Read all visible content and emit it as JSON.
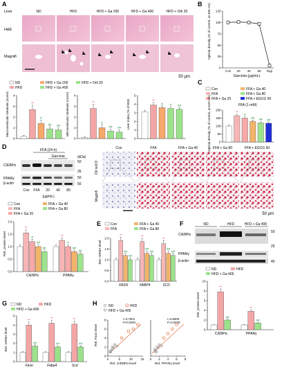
{
  "panels": {
    "A": {
      "letter": "A",
      "row_labels": {
        "section": "Liver",
        "he": "H&E",
        "magnifi": "Magnifi"
      },
      "groups": [
        "ND",
        "HFD",
        "HFD + Ga 200",
        "HFD + Ga 400",
        "HFD + Orli 20"
      ],
      "scale_bar": "50 μm",
      "legend": [
        "ND",
        "HFD",
        "HFD + Ga 200",
        "HFD + Ga 400",
        "HFD + Orli 20"
      ],
      "charts": [
        {
          "ylabel": "Macrovesicular steatosis (score)",
          "ymax": 4,
          "ticks": [
            "0",
            "1",
            "2",
            "3",
            "4"
          ],
          "values": [
            0.2,
            2.7,
            1.4,
            0.9,
            0.8
          ],
          "errors": [
            0.1,
            0.4,
            0.3,
            0.2,
            0.2
          ],
          "marks": [
            "",
            "**",
            "#",
            "##",
            "##"
          ]
        },
        {
          "ylabel": "Microvesicular steatosis (score)",
          "ymax": 4,
          "ticks": [
            "0",
            "1",
            "2",
            "3",
            "4"
          ],
          "values": [
            0.1,
            2.8,
            1.0,
            0.7,
            0.6
          ],
          "errors": [
            0.1,
            0.4,
            0.3,
            0.2,
            0.2
          ],
          "marks": [
            "",
            "**",
            "#",
            "##",
            "##"
          ]
        },
        {
          "ylabel": "Liver index (% of BW)",
          "ymax": 5,
          "ticks": [
            "0",
            "1",
            "2",
            "3",
            "4",
            "5"
          ],
          "values": [
            3.1,
            3.9,
            3.6,
            3.5,
            3.4
          ],
          "errors": [
            0.2,
            0.3,
            0.2,
            0.2,
            0.2
          ],
          "marks": [
            "",
            "**",
            "#",
            "#",
            "##"
          ]
        }
      ]
    },
    "B": {
      "letter": "B",
      "ylabel": "Optical density (% of control, at 405 nm)",
      "xlabel": "Garcinia (μg/mL)",
      "xticks": [
        "Con",
        "20",
        "40",
        "80",
        "Digi"
      ],
      "yticks": [
        "0",
        "25",
        "50",
        "75",
        "100",
        "125"
      ],
      "values": [
        100,
        101,
        100,
        97,
        5
      ]
    },
    "C": {
      "letter": "C",
      "legend": [
        "Con",
        "FFA",
        "FFA + Ga 20",
        "FFA + Ga 40",
        "FFA + Ga 80",
        "FFA + EGCG 50"
      ],
      "title": "FFA (1 mM)",
      "ylabel": "Optical density (% of control, at 520 nm)",
      "yticks": [
        "0",
        "50",
        "100",
        "150",
        "200"
      ],
      "values": [
        100,
        165,
        150,
        130,
        120,
        118
      ],
      "marks": [
        "",
        "**",
        "#",
        "##",
        "##",
        "##"
      ]
    },
    "D": {
      "letter": "D",
      "ffa_label": "FFA (24 h)",
      "garcinia_label": "Garcinia",
      "kda_label": "(kDa)",
      "bands": [
        "C/EBPα",
        "PPARγ",
        "β-actin"
      ],
      "kda_marks": [
        "50",
        "25",
        "50",
        "50"
      ],
      "lanes": [
        "Con",
        "FFA",
        "20",
        "40",
        "80"
      ],
      "unit": "(μg/mL)",
      "oil_groups": [
        "Con",
        "FFA",
        "FFA + Ga 40",
        "FFA + Ga 80",
        "FFA + EGCG 50"
      ],
      "row_labels": {
        "oil": "Oil red O",
        "magnifi": "Magnifi"
      },
      "scale_bar": "50 μm",
      "legend": [
        "Con",
        "FFA",
        "FFA + Ga 20",
        "FFA + Ga 40",
        "FFA + Ga 80"
      ],
      "ylabel": "Rel. protein level",
      "xgroups": [
        "C/EBPα",
        "PPARγ"
      ],
      "yticks": [
        "0.0",
        "0.5",
        "1.0",
        "1.5",
        "2.0"
      ],
      "series": [
        [
          1.0,
          1.55,
          1.2,
          1.0,
          0.8
        ],
        [
          1.0,
          1.25,
          1.0,
          0.8,
          0.7
        ]
      ],
      "marks": [
        [
          "",
          "**",
          "#",
          "##",
          "##"
        ],
        [
          "",
          "**",
          "#",
          "##",
          "##"
        ]
      ]
    },
    "E": {
      "letter": "E",
      "legend": [
        "Con",
        "FFA",
        "FFA + Ga 40",
        "FFA + Ga 80"
      ],
      "ylabel": "Rel. mRNA level",
      "genes": [
        "FASN",
        "FABP4",
        "SCD"
      ],
      "yticks": [
        "0.0",
        "0.5",
        "1.0",
        "1.5",
        "2.0"
      ],
      "series": [
        [
          1.0,
          1.9,
          1.2,
          1.0
        ],
        [
          1.0,
          1.85,
          1.3,
          1.2
        ],
        [
          1.0,
          1.75,
          1.3,
          1.2
        ]
      ],
      "marks": [
        [
          "",
          "**",
          "##",
          "##"
        ],
        [
          "",
          "**",
          "##",
          "##"
        ],
        [
          "",
          "**",
          "##",
          "##"
        ]
      ]
    },
    "F": {
      "letter": "F",
      "groups": [
        "ND",
        "HFD",
        "HFD + Ga 400"
      ],
      "bands": [
        "C/EBPα",
        "PPARγ",
        "β-actin"
      ],
      "kda_marks": [
        "50",
        "25",
        "40"
      ],
      "legend": [
        "ND",
        "HFD",
        "HFD + Ga 400"
      ],
      "ylabel": "Rel. protein level",
      "xgroups": [
        "C/EBPα",
        "PPARγ"
      ],
      "yticks": [
        "0",
        "2",
        "4",
        "6",
        "8",
        "10"
      ],
      "series": [
        [
          1.0,
          7.8,
          2.0
        ],
        [
          1.0,
          3.8,
          1.4
        ]
      ],
      "marks": [
        [
          "",
          "**",
          "##"
        ],
        [
          "",
          "**",
          "##"
        ]
      ]
    },
    "G": {
      "letter": "G",
      "legend": [
        "ND",
        "HFD",
        "HFD + Ga 400"
      ],
      "ylabel": "Rel. mRNA level",
      "genes": [
        "Fasn",
        "Fabp4",
        "Scd"
      ],
      "yticks": [
        "0",
        "1",
        "2",
        "3",
        "4",
        "5"
      ],
      "series": [
        [
          1.0,
          4.0,
          1.7
        ],
        [
          1.0,
          4.2,
          1.6
        ],
        [
          1.0,
          4.1,
          1.6
        ]
      ],
      "marks": [
        [
          "",
          "**",
          "##"
        ],
        [
          "",
          "**",
          "##"
        ],
        [
          "",
          "**",
          "##"
        ]
      ]
    },
    "H": {
      "letter": "H",
      "legend": [
        "ND",
        "HFD",
        "HFD + Ga 400"
      ],
      "ylabel": "Rel. Fasn level",
      "xlabel1": "Rel. C/EBPα level",
      "xlabel2": "Rel. PPARγ level",
      "stats1": [
        "r=0.7901",
        "P<0.0001"
      ],
      "stats2": [
        "r=0.6609",
        "P=0.0028"
      ],
      "yticks": [
        "0",
        "2",
        "4",
        "6",
        "8"
      ],
      "xticks1": [
        "0",
        "5",
        "10",
        "15"
      ],
      "xticks2": [
        "0",
        "2",
        "4",
        "6",
        "8"
      ]
    }
  },
  "colors": {
    "nd": "#ffffff",
    "hfd": "#f4a6a6",
    "ga200": "#f6a96b",
    "ga400": "#9be28a",
    "orli": "#9be28a",
    "con": "#ffffff",
    "ffa": "#f7b6b6",
    "ga20": "#f7a8a8",
    "ga40": "#f2b46a",
    "ga80": "#9de38c",
    "egcg": "#1f2fd6",
    "sig": "#c0392b",
    "hash": "#1f8f3a"
  },
  "chart_data": [
    {
      "type": "bar",
      "title": "",
      "categories": [
        "ND",
        "HFD",
        "HFD + Ga 200",
        "HFD + Ga 400",
        "HFD + Orli 20"
      ],
      "values": [
        0.2,
        2.7,
        1.4,
        0.9,
        0.8
      ],
      "ylabel": "Macrovesicular steatosis (score)",
      "ylim": [
        0,
        4
      ]
    },
    {
      "type": "bar",
      "title": "",
      "categories": [
        "ND",
        "HFD",
        "HFD + Ga 200",
        "HFD + Ga 400",
        "HFD + Orli 20"
      ],
      "values": [
        0.1,
        2.8,
        1.0,
        0.7,
        0.6
      ],
      "ylabel": "Microvesicular steatosis (score)",
      "ylim": [
        0,
        4
      ]
    },
    {
      "type": "bar",
      "title": "",
      "categories": [
        "ND",
        "HFD",
        "HFD + Ga 200",
        "HFD + Ga 400",
        "HFD + Orli 20"
      ],
      "values": [
        3.1,
        3.9,
        3.6,
        3.5,
        3.4
      ],
      "ylabel": "Liver index (% of BW)",
      "ylim": [
        0,
        5
      ]
    },
    {
      "type": "line",
      "title": "",
      "categories": [
        "Con",
        "20",
        "40",
        "80",
        "Digi"
      ],
      "values": [
        100,
        101,
        100,
        97,
        5
      ],
      "xlabel": "Garcinia (μg/mL)",
      "ylabel": "Optical density (% of control, at 405 nm)",
      "ylim": [
        0,
        125
      ]
    },
    {
      "type": "bar",
      "title": "FFA (1 mM)",
      "categories": [
        "Con",
        "FFA",
        "FFA + Ga 20",
        "FFA + Ga 40",
        "FFA + Ga 80",
        "FFA + EGCG 50"
      ],
      "values": [
        100,
        165,
        150,
        130,
        120,
        118
      ],
      "ylabel": "Optical density (% of control, at 520 nm)",
      "ylim": [
        0,
        200
      ]
    },
    {
      "type": "bar",
      "title": "",
      "categories": [
        "C/EBPα",
        "PPARγ"
      ],
      "series": [
        {
          "name": "Con",
          "values": [
            1.0,
            1.0
          ]
        },
        {
          "name": "FFA",
          "values": [
            1.55,
            1.25
          ]
        },
        {
          "name": "FFA + Ga 20",
          "values": [
            1.2,
            1.0
          ]
        },
        {
          "name": "FFA + Ga 40",
          "values": [
            1.0,
            0.8
          ]
        },
        {
          "name": "FFA + Ga 80",
          "values": [
            0.8,
            0.7
          ]
        }
      ],
      "ylabel": "Rel. protein level",
      "ylim": [
        0,
        2
      ]
    },
    {
      "type": "bar",
      "title": "",
      "categories": [
        "FASN",
        "FABP4",
        "SCD"
      ],
      "series": [
        {
          "name": "Con",
          "values": [
            1.0,
            1.0,
            1.0
          ]
        },
        {
          "name": "FFA",
          "values": [
            1.9,
            1.85,
            1.75
          ]
        },
        {
          "name": "FFA + Ga 40",
          "values": [
            1.2,
            1.3,
            1.3
          ]
        },
        {
          "name": "FFA + Ga 80",
          "values": [
            1.0,
            1.2,
            1.2
          ]
        }
      ],
      "ylabel": "Rel. mRNA level",
      "ylim": [
        0,
        2
      ]
    },
    {
      "type": "bar",
      "title": "",
      "categories": [
        "C/EBPα",
        "PPARγ"
      ],
      "series": [
        {
          "name": "ND",
          "values": [
            1.0,
            1.0
          ]
        },
        {
          "name": "HFD",
          "values": [
            7.8,
            3.8
          ]
        },
        {
          "name": "HFD + Ga 400",
          "values": [
            2.0,
            1.4
          ]
        }
      ],
      "ylabel": "Rel. protein level",
      "ylim": [
        0,
        10
      ]
    },
    {
      "type": "bar",
      "title": "",
      "categories": [
        "Fasn",
        "Fabp4",
        "Scd"
      ],
      "series": [
        {
          "name": "ND",
          "values": [
            1.0,
            1.0,
            1.0
          ]
        },
        {
          "name": "HFD",
          "values": [
            4.0,
            4.2,
            4.1
          ]
        },
        {
          "name": "HFD + Ga 400",
          "values": [
            1.7,
            1.6,
            1.6
          ]
        }
      ],
      "ylabel": "Rel. mRNA level",
      "ylim": [
        0,
        5
      ]
    },
    {
      "type": "scatter",
      "title": "",
      "xlabel": "Rel. C/EBPα level",
      "ylabel": "Rel. Fasn level",
      "series": [
        {
          "name": "ND",
          "points": [
            [
              1,
              1
            ],
            [
              1.5,
              1.3
            ],
            [
              2,
              1.5
            ],
            [
              1.2,
              0.9
            ]
          ]
        },
        {
          "name": "HFD",
          "points": [
            [
              6,
              4
            ],
            [
              9,
              5.5
            ],
            [
              11,
              6
            ],
            [
              13,
              7
            ]
          ]
        },
        {
          "name": "HFD + Ga 400",
          "points": [
            [
              2,
              2
            ],
            [
              3,
              2.5
            ],
            [
              4,
              2.2
            ],
            [
              2.5,
              1.8
            ]
          ]
        }
      ],
      "xlim": [
        0,
        15
      ],
      "ylim": [
        0,
        8
      ]
    },
    {
      "type": "scatter",
      "title": "",
      "xlabel": "Rel. PPARγ level",
      "ylabel": "Rel. Fasn level",
      "series": [
        {
          "name": "ND",
          "points": [
            [
              1,
              1
            ],
            [
              1.2,
              1.3
            ],
            [
              0.9,
              1.5
            ],
            [
              1.3,
              0.9
            ]
          ]
        },
        {
          "name": "HFD",
          "points": [
            [
              3,
              4
            ],
            [
              4,
              5
            ],
            [
              5,
              6
            ],
            [
              6,
              7
            ]
          ]
        },
        {
          "name": "HFD + Ga 400",
          "points": [
            [
              1.5,
              2
            ],
            [
              2,
              2.5
            ],
            [
              2.5,
              2.2
            ],
            [
              1.8,
              1.8
            ]
          ]
        }
      ],
      "xlim": [
        0,
        8
      ],
      "ylim": [
        0,
        8
      ]
    }
  ]
}
